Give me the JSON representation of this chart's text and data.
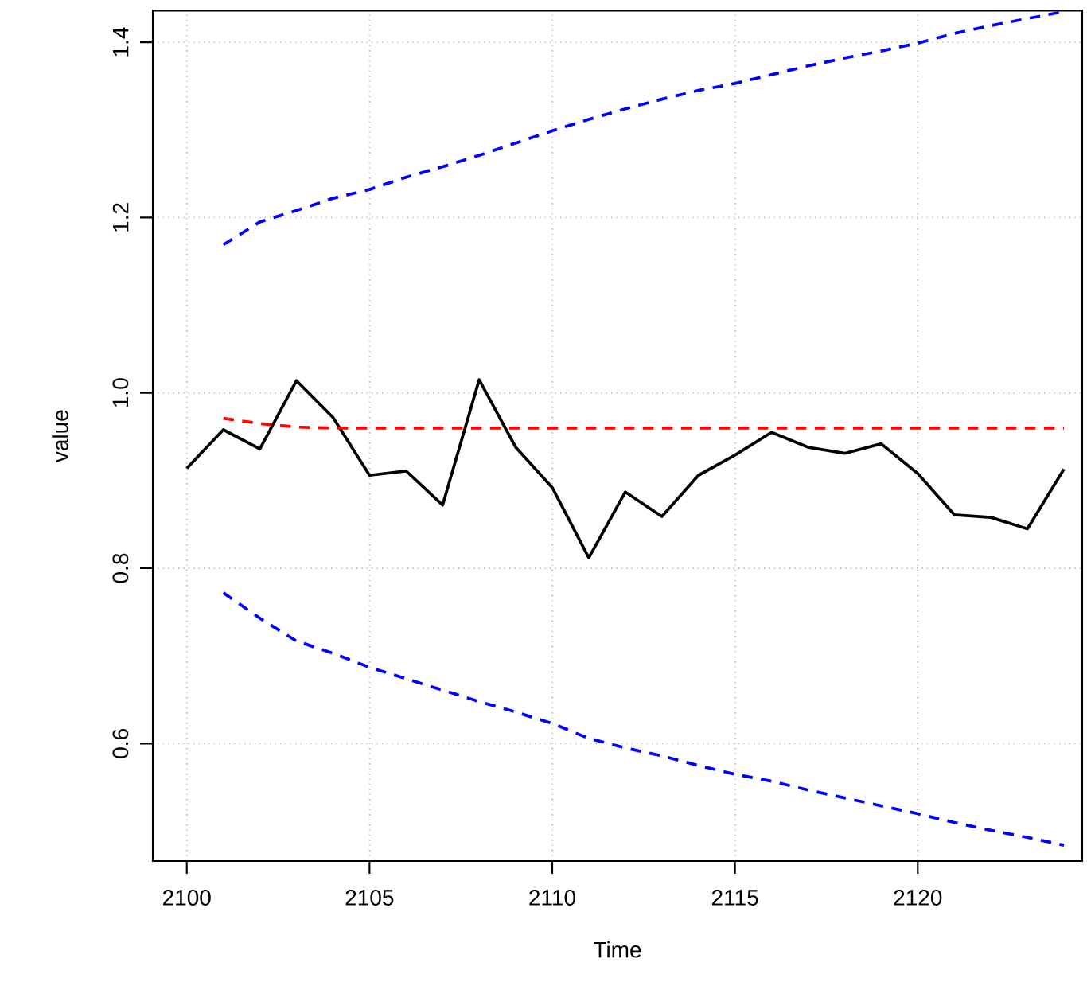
{
  "chart_data": {
    "type": "line",
    "xlabel": "Time",
    "ylabel": "value",
    "x": [
      2100,
      2101,
      2102,
      2103,
      2104,
      2105,
      2106,
      2107,
      2108,
      2109,
      2110,
      2111,
      2112,
      2113,
      2114,
      2115,
      2116,
      2117,
      2118,
      2119,
      2120,
      2121,
      2122,
      2123,
      2124
    ],
    "series": [
      {
        "color": "#000000",
        "line_style": "solid",
        "values": [
          0.914,
          0.958,
          0.936,
          1.014,
          0.972,
          0.906,
          0.911,
          0.872,
          1.015,
          0.938,
          0.892,
          0.812,
          0.887,
          0.859,
          0.906,
          0.929,
          0.955,
          0.938,
          0.931,
          0.942,
          0.908,
          0.861,
          0.858,
          0.845,
          0.913
        ]
      },
      {
        "color": "#ff0000",
        "line_style": "dashed",
        "x": [
          2101,
          2102,
          2103,
          2104,
          2105,
          2106,
          2107,
          2108,
          2109,
          2110,
          2111,
          2112,
          2113,
          2114,
          2115,
          2116,
          2117,
          2118,
          2119,
          2120,
          2121,
          2122,
          2123,
          2124
        ],
        "values": [
          0.971,
          0.965,
          0.961,
          0.96,
          0.96,
          0.96,
          0.96,
          0.96,
          0.96,
          0.96,
          0.96,
          0.96,
          0.96,
          0.96,
          0.96,
          0.96,
          0.96,
          0.96,
          0.96,
          0.96,
          0.96,
          0.96,
          0.96,
          0.96
        ]
      },
      {
        "color": "#0000ff",
        "line_style": "dashed",
        "x": [
          2101,
          2102,
          2103,
          2104,
          2105,
          2106,
          2107,
          2108,
          2109,
          2110,
          2111,
          2112,
          2113,
          2114,
          2115,
          2116,
          2117,
          2118,
          2119,
          2120,
          2121,
          2122,
          2123,
          2124
        ],
        "values": [
          1.169,
          1.195,
          1.208,
          1.222,
          1.232,
          1.246,
          1.258,
          1.271,
          1.285,
          1.299,
          1.312,
          1.324,
          1.335,
          1.345,
          1.353,
          1.363,
          1.373,
          1.382,
          1.39,
          1.399,
          1.41,
          1.419,
          1.427,
          1.435
        ]
      },
      {
        "color": "#0000ff",
        "line_style": "dashed",
        "x": [
          2101,
          2102,
          2103,
          2104,
          2105,
          2106,
          2107,
          2108,
          2109,
          2110,
          2111,
          2112,
          2113,
          2114,
          2115,
          2116,
          2117,
          2118,
          2119,
          2120,
          2121,
          2122,
          2123,
          2124
        ],
        "values": [
          0.772,
          0.743,
          0.717,
          0.703,
          0.687,
          0.674,
          0.661,
          0.648,
          0.636,
          0.623,
          0.606,
          0.595,
          0.586,
          0.575,
          0.565,
          0.557,
          0.547,
          0.538,
          0.529,
          0.52,
          0.51,
          0.501,
          0.493,
          0.484
        ]
      }
    ],
    "xlim": [
      2099.07,
      2124.5
    ],
    "ylim": [
      0.466,
      1.436
    ],
    "xticks": [
      2100,
      2105,
      2110,
      2115,
      2120
    ],
    "yticks": [
      0.6,
      0.8,
      {
        "value": 1.0,
        "label": "1.0"
      },
      1.2,
      1.4
    ],
    "grid": true
  }
}
